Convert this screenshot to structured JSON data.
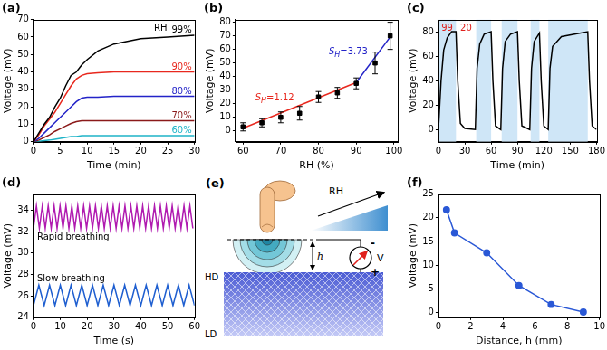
{
  "chart_data": [
    {
      "type": "line",
      "title": "(a)",
      "x_label": "Time (min)",
      "y_label": "Voltage (mV)",
      "x": [
        0,
        1,
        2,
        3,
        4,
        5,
        6,
        7,
        8,
        9,
        10,
        12,
        15,
        20,
        25,
        30
      ],
      "series": [
        {
          "name": "99%",
          "color": "#000000",
          "values": [
            0,
            5,
            10,
            14,
            20,
            25,
            32,
            38,
            40,
            44,
            47,
            52,
            56,
            59,
            60,
            61
          ]
        },
        {
          "name": "90%",
          "color": "#e8281e",
          "values": [
            0,
            4,
            9,
            13,
            17,
            22,
            27,
            32,
            36,
            38,
            39,
            39.5,
            40,
            40,
            40,
            40
          ]
        },
        {
          "name": "80%",
          "color": "#2323c8",
          "values": [
            0,
            2,
            5,
            8,
            11,
            14,
            17,
            20,
            23,
            25,
            25.5,
            25.5,
            26,
            26,
            26,
            26
          ]
        },
        {
          "name": "70%",
          "color": "#8b1a1a",
          "values": [
            0,
            1,
            2.5,
            4,
            6,
            7.5,
            9,
            10.5,
            11.5,
            12,
            12,
            12,
            12,
            12,
            12,
            12
          ]
        },
        {
          "name": "60%",
          "color": "#1fb4c8",
          "values": [
            0,
            0.3,
            0.7,
            1,
            1.5,
            2,
            2.5,
            3,
            3,
            3.5,
            3.5,
            3.5,
            3.5,
            3.5,
            3.5,
            3.5
          ]
        }
      ],
      "annotation": "RH",
      "xlim": [
        0,
        30
      ],
      "xticks": [
        0,
        5,
        10,
        15,
        20,
        25,
        30
      ],
      "ylim": [
        0,
        70
      ],
      "yticks": [
        0,
        10,
        20,
        30,
        40,
        50,
        60,
        70
      ],
      "grid": false
    },
    {
      "type": "scatter",
      "title": "(b)",
      "x_label": "RH (%)",
      "y_label": "Voltage (mV)",
      "series": [
        {
          "type": "scatter",
          "marker": "square",
          "color": "#000000",
          "x": [
            60,
            65,
            70,
            75,
            80,
            85,
            90,
            95,
            99
          ],
          "values": [
            3,
            6,
            10,
            13,
            25,
            28,
            35,
            50,
            70
          ],
          "errors": [
            3,
            3,
            4,
            5,
            4,
            4,
            4,
            8,
            10
          ]
        },
        {
          "type": "line",
          "color": "#e8281e",
          "x": [
            60,
            90
          ],
          "values": [
            2,
            35.6
          ],
          "annotation": {
            "symbol": "S",
            "subscript": "H",
            "operator": "=",
            "value": 1.12
          }
        },
        {
          "type": "line",
          "color": "#2323c8",
          "x": [
            90,
            99
          ],
          "values": [
            35.6,
            69.2
          ],
          "annotation": {
            "symbol": "S",
            "subscript": "H",
            "operator": "=",
            "value": 3.73
          }
        }
      ],
      "xlim": [
        58,
        101
      ],
      "xticks": [
        60,
        70,
        80,
        90,
        100
      ],
      "ylim": [
        -8,
        82
      ],
      "yticks": [
        0,
        10,
        20,
        30,
        40,
        50,
        60,
        70,
        80
      ],
      "grid": false
    },
    {
      "type": "line",
      "title": "(c)",
      "x_label": "Time (min)",
      "y_label": "Voltage (mV)",
      "x": [
        0,
        3,
        6,
        10,
        15,
        20,
        22,
        25,
        30,
        42,
        44,
        47,
        52,
        60,
        62,
        65,
        71,
        73,
        76,
        82,
        90,
        92,
        95,
        104,
        106,
        109,
        115,
        117,
        120,
        125,
        127,
        130,
        140,
        155,
        170,
        172,
        175,
        180
      ],
      "series": [
        {
          "color": "#000000",
          "values": [
            0,
            40,
            65,
            75,
            80,
            80,
            40,
            5,
            1,
            0,
            50,
            70,
            78,
            80,
            40,
            3,
            0,
            50,
            72,
            78,
            80,
            40,
            3,
            0,
            50,
            72,
            79,
            40,
            3,
            0,
            50,
            68,
            76,
            78,
            80,
            40,
            3,
            0
          ]
        }
      ],
      "regions": [
        [
          0,
          20
        ],
        [
          43,
          60
        ],
        [
          72,
          90
        ],
        [
          105,
          115
        ],
        [
          125,
          170
        ]
      ],
      "region_color": "#cfe6f7",
      "annotations": [
        {
          "text": "99",
          "color": "#e0201c"
        },
        {
          "text": "20",
          "color": "#e0201c"
        }
      ],
      "xlim": [
        0,
        180
      ],
      "xticks": [
        0,
        30,
        60,
        90,
        120,
        150,
        180
      ],
      "ylim": [
        -10,
        90
      ],
      "yticks": [
        0,
        20,
        40,
        60,
        80
      ],
      "grid": false
    },
    {
      "type": "line",
      "title": "(d)",
      "x_label": "Time (s)",
      "y_label": "Voltage (mV)",
      "series": [
        {
          "name": "Rapid breathing",
          "color": "#b01ab0",
          "x": [
            0,
            1.1,
            2.2,
            3.3,
            4.4,
            5.5,
            6.6,
            7.7,
            8.8,
            9.9,
            11,
            12.1,
            13.2,
            14.3,
            15.4,
            16.5,
            17.6,
            18.7,
            19.8,
            20.9,
            22,
            23.1,
            24.2,
            25.3,
            26.4,
            27.5,
            28.6,
            29.7,
            30.8,
            31.9,
            33,
            34.1,
            35.2,
            36.3,
            37.4,
            38.5,
            39.6,
            40.7,
            41.8,
            42.9,
            44,
            45.1,
            46.2,
            47.3,
            48.4,
            49.5,
            50.6,
            51.7,
            52.8,
            53.9,
            55,
            56.1,
            57.2,
            58.3,
            59.4
          ],
          "values": [
            32.3,
            34.4,
            32.3,
            34.4,
            32.3,
            34.4,
            32.3,
            34.4,
            32.3,
            34.4,
            32.3,
            34.4,
            32.3,
            34.4,
            32.3,
            34.4,
            32.3,
            34.4,
            32.3,
            34.4,
            32.3,
            34.4,
            32.3,
            34.4,
            32.3,
            34.4,
            32.3,
            34.4,
            32.3,
            34.4,
            32.3,
            34.4,
            32.3,
            34.4,
            32.3,
            34.4,
            32.3,
            34.4,
            32.3,
            34.4,
            32.3,
            34.4,
            32.3,
            34.4,
            32.3,
            34.4,
            32.3,
            34.4,
            32.3,
            34.4,
            32.3,
            34.4,
            32.3,
            34.4,
            32.3
          ]
        },
        {
          "name": "Slow breathing",
          "color": "#1f5fd0",
          "x": [
            0,
            2,
            4,
            6,
            8,
            10,
            12,
            14,
            16,
            18,
            20,
            22,
            24,
            26,
            28,
            30,
            32,
            34,
            36,
            38,
            40,
            42,
            44,
            46,
            48,
            50,
            52,
            54,
            56,
            58,
            60
          ],
          "values": [
            25.1,
            27,
            25.1,
            27,
            25.1,
            27,
            25.1,
            27,
            25.1,
            27,
            25.1,
            27,
            25.1,
            27,
            25.1,
            27,
            25.1,
            27,
            25.1,
            27,
            25.1,
            27,
            25.1,
            27,
            25.1,
            27,
            25.1,
            27,
            25.1,
            27,
            25.1
          ]
        }
      ],
      "xlim": [
        0,
        60
      ],
      "xticks": [
        0,
        10,
        20,
        30,
        40,
        50,
        60
      ],
      "ylim": [
        24,
        35.5
      ],
      "yticks": [
        24,
        26,
        28,
        30,
        32,
        34
      ],
      "grid": false
    },
    {
      "type": "line",
      "title": "(f)",
      "x_label": "Distance, h (mm)",
      "y_label": "Voltage (mV)",
      "x": [
        0.5,
        1,
        3,
        5,
        7,
        9
      ],
      "series": [
        {
          "color": "#2a58d6",
          "marker": "circle",
          "values": [
            21.7,
            16.8,
            12.6,
            5.7,
            1.7,
            0.1
          ]
        }
      ],
      "xlim": [
        0,
        10
      ],
      "xticks": [
        0,
        2,
        4,
        6,
        8,
        10
      ],
      "ylim": [
        -1,
        25
      ],
      "yticks": [
        0,
        5,
        10,
        15,
        20,
        25
      ],
      "grid": false
    }
  ],
  "diagram": {
    "title": "(e)",
    "hd": "HD",
    "ld": "LD",
    "h": "h",
    "rh": "RH",
    "meter": "V",
    "minus": "-",
    "plus": "+"
  }
}
